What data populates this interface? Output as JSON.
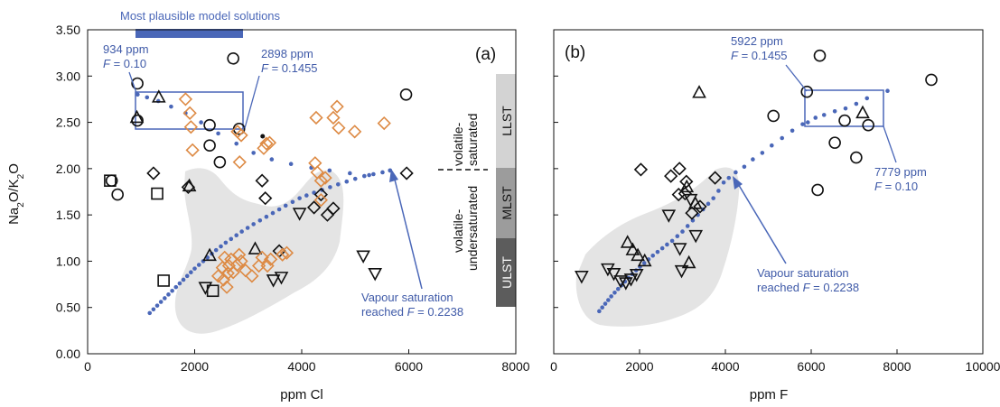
{
  "colors": {
    "model": "#4a67b8",
    "diamond_orange": "#dd8a44",
    "grey_field": "#e4e4e4",
    "band_LLST": "#d3d3d3",
    "band_MLST": "#9c9c9c",
    "band_ULST": "#5c5c5c",
    "model_bar": "#4a67b8"
  },
  "chart_data": [
    {
      "panel": "(a)",
      "type": "scatter",
      "xlabel": "ppm Cl",
      "ylabel": "Na2O/K2O",
      "xlim": [
        0,
        8000
      ],
      "ylim": [
        0,
        3.5
      ],
      "xticks": [
        "0",
        "2000",
        "4000",
        "6000",
        "8000"
      ],
      "yticks": [
        "0.00",
        "0.50",
        "1.00",
        "1.50",
        "2.00",
        "2.50",
        "3.00",
        "3.50"
      ],
      "model_bar_label": "Most plausible model solutions",
      "model_bar_range": [
        934,
        2898
      ],
      "box_range": {
        "x": [
          900,
          2950
        ],
        "y": [
          2.43,
          2.82
        ]
      },
      "annotations": {
        "left_box": {
          "line1": "934 ppm",
          "f_symbol": "F",
          "f_value": " = 0.10"
        },
        "right_box": {
          "line1": "2898 ppm",
          "f_symbol": "F",
          "f_value": " = 0.1455"
        },
        "vapour": {
          "line1": "Vapour saturation",
          "line2_prefix": "reached ",
          "f_symbol": "F",
          "f_value": " = 0.2238"
        }
      },
      "side_labels": {
        "volatile_saturated": [
          "volatile-",
          "saturated"
        ],
        "volatile_undersaturated": [
          "volatile-",
          "undersaturated"
        ]
      },
      "bands": [
        {
          "name": "LLST",
          "range": [
            2.0,
            3.05
          ]
        },
        {
          "name": "MLST",
          "range": [
            1.27,
            2.0
          ]
        },
        {
          "name": "ULST",
          "range": [
            0.5,
            1.27
          ]
        }
      ],
      "model_curve_dots": [
        [
          1160,
          0.44
        ],
        [
          1230,
          0.48
        ],
        [
          1300,
          0.52
        ],
        [
          1370,
          0.56
        ],
        [
          1440,
          0.6
        ],
        [
          1510,
          0.64
        ],
        [
          1580,
          0.68
        ],
        [
          1650,
          0.72
        ],
        [
          1720,
          0.76
        ],
        [
          1790,
          0.8
        ],
        [
          1860,
          0.84
        ],
        [
          1930,
          0.88
        ],
        [
          2000,
          0.92
        ],
        [
          2080,
          0.96
        ],
        [
          2160,
          1.0
        ],
        [
          2240,
          1.04
        ],
        [
          2320,
          1.08
        ],
        [
          2400,
          1.12
        ],
        [
          2490,
          1.16
        ],
        [
          2580,
          1.2
        ],
        [
          2680,
          1.24
        ],
        [
          2780,
          1.28
        ],
        [
          2880,
          1.32
        ],
        [
          2990,
          1.36
        ],
        [
          3100,
          1.4
        ],
        [
          3220,
          1.44
        ],
        [
          3340,
          1.48
        ],
        [
          3460,
          1.52
        ],
        [
          3580,
          1.56
        ],
        [
          3700,
          1.6
        ],
        [
          3830,
          1.64
        ],
        [
          3960,
          1.68
        ],
        [
          4090,
          1.71
        ],
        [
          4230,
          1.74
        ],
        [
          4380,
          1.77
        ],
        [
          4530,
          1.8
        ],
        [
          4680,
          1.83
        ],
        [
          4840,
          1.86
        ],
        [
          5000,
          1.89
        ],
        [
          5170,
          1.92
        ],
        [
          5340,
          1.94
        ],
        [
          5510,
          1.96
        ],
        [
          5650,
          1.98
        ],
        [
          934,
          2.8
        ],
        [
          1110,
          2.77
        ],
        [
          1320,
          2.73
        ],
        [
          1560,
          2.67
        ],
        [
          1830,
          2.6
        ],
        [
          2120,
          2.5
        ],
        [
          2440,
          2.38
        ],
        [
          2780,
          2.27
        ],
        [
          3100,
          2.17
        ],
        [
          3440,
          2.1
        ],
        [
          3800,
          2.05
        ],
        [
          4180,
          2.01
        ],
        [
          4520,
          1.98
        ],
        [
          4900,
          1.95
        ],
        [
          5260,
          1.93
        ],
        [
          5650,
          1.98
        ]
      ],
      "circles": [
        [
          930,
          2.92
        ],
        [
          930,
          2.52
        ],
        [
          2280,
          2.47
        ],
        [
          2280,
          2.25
        ],
        [
          2470,
          2.07
        ],
        [
          2720,
          3.19
        ],
        [
          2830,
          2.43
        ],
        [
          5950,
          2.8
        ],
        [
          450,
          1.87
        ],
        [
          560,
          1.72
        ]
      ],
      "squares": [
        [
          420,
          1.87
        ],
        [
          1300,
          1.73
        ],
        [
          1420,
          0.79
        ],
        [
          2340,
          0.68
        ]
      ],
      "triangles_up": [
        [
          920,
          2.55
        ],
        [
          1330,
          2.77
        ],
        [
          1900,
          1.81
        ],
        [
          2280,
          1.06
        ],
        [
          3130,
          1.13
        ]
      ],
      "triangles_down": [
        [
          2200,
          0.72
        ],
        [
          3470,
          0.8
        ],
        [
          3620,
          0.83
        ],
        [
          3960,
          1.52
        ],
        [
          5150,
          1.06
        ],
        [
          5370,
          0.87
        ]
      ],
      "diamonds_black": [
        [
          1230,
          1.95
        ],
        [
          1880,
          1.8
        ],
        [
          3260,
          1.87
        ],
        [
          3320,
          1.68
        ],
        [
          3580,
          1.11
        ],
        [
          4360,
          1.72
        ],
        [
          4590,
          1.57
        ],
        [
          4480,
          1.5
        ],
        [
          4230,
          1.58
        ],
        [
          5960,
          1.95
        ]
      ],
      "diamonds_orange": [
        [
          1830,
          2.75
        ],
        [
          1910,
          2.6
        ],
        [
          1930,
          2.45
        ],
        [
          1960,
          2.2
        ],
        [
          2800,
          2.4
        ],
        [
          2870,
          2.36
        ],
        [
          2840,
          2.07
        ],
        [
          3290,
          2.22
        ],
        [
          3340,
          2.27
        ],
        [
          3400,
          2.28
        ],
        [
          4270,
          2.55
        ],
        [
          4590,
          2.55
        ],
        [
          4660,
          2.67
        ],
        [
          4690,
          2.44
        ],
        [
          4990,
          2.4
        ],
        [
          5540,
          2.49
        ],
        [
          4250,
          2.06
        ],
        [
          4290,
          1.96
        ],
        [
          4360,
          1.87
        ],
        [
          4440,
          1.9
        ],
        [
          4360,
          1.66
        ],
        [
          2560,
          1.04
        ],
        [
          2640,
          0.95
        ],
        [
          2680,
          1.02
        ],
        [
          2720,
          0.88
        ],
        [
          2790,
          0.96
        ],
        [
          2830,
          1.07
        ],
        [
          2870,
          1.0
        ],
        [
          2950,
          0.9
        ],
        [
          3070,
          0.84
        ],
        [
          3200,
          0.95
        ],
        [
          3260,
          1.04
        ],
        [
          3360,
          0.95
        ],
        [
          3420,
          1.02
        ],
        [
          3640,
          1.07
        ],
        [
          3720,
          1.09
        ],
        [
          2440,
          0.84
        ],
        [
          2540,
          0.8
        ],
        [
          2600,
          0.72
        ],
        [
          2520,
          0.93
        ],
        [
          2620,
          0.87
        ]
      ],
      "small_black_dot": [
        3270,
        2.35
      ]
    },
    {
      "panel": "(b)",
      "type": "scatter",
      "xlabel": "ppm F",
      "xlim": [
        0,
        10000
      ],
      "ylim": [
        0,
        3.5
      ],
      "xticks": [
        "0",
        "2000",
        "4000",
        "6000",
        "8000",
        "10000"
      ],
      "box_range": {
        "x": [
          5922,
          7779
        ],
        "y": [
          2.45,
          2.84
        ]
      },
      "annotations": {
        "left_box": {
          "line1": "5922 ppm",
          "f_symbol": "F",
          "f_value": " = 0.1455"
        },
        "right_box": {
          "line1": "7779 ppm",
          "f_symbol": "F",
          "f_value": " = 0.10"
        },
        "vapour": {
          "line1": "Vapour saturation",
          "line2_prefix": "reached ",
          "f_symbol": "F",
          "f_value": " = 0.2238"
        }
      },
      "model_curve_dots": [
        [
          1060,
          0.46
        ],
        [
          1130,
          0.5
        ],
        [
          1200,
          0.54
        ],
        [
          1270,
          0.58
        ],
        [
          1340,
          0.62
        ],
        [
          1420,
          0.66
        ],
        [
          1500,
          0.7
        ],
        [
          1580,
          0.74
        ],
        [
          1660,
          0.78
        ],
        [
          1740,
          0.82
        ],
        [
          1830,
          0.86
        ],
        [
          1920,
          0.9
        ],
        [
          2010,
          0.94
        ],
        [
          2110,
          0.98
        ],
        [
          2210,
          1.02
        ],
        [
          2310,
          1.06
        ],
        [
          2420,
          1.1
        ],
        [
          2530,
          1.14
        ],
        [
          2640,
          1.18
        ],
        [
          2760,
          1.22
        ],
        [
          2880,
          1.27
        ],
        [
          3000,
          1.32
        ],
        [
          3120,
          1.38
        ],
        [
          3240,
          1.44
        ],
        [
          3360,
          1.5
        ],
        [
          3480,
          1.56
        ],
        [
          3600,
          1.62
        ],
        [
          3720,
          1.68
        ],
        [
          3840,
          1.76
        ],
        [
          3960,
          1.85
        ],
        [
          4080,
          1.9
        ],
        [
          4240,
          1.96
        ],
        [
          4440,
          2.02
        ],
        [
          4640,
          2.1
        ],
        [
          4860,
          2.17
        ],
        [
          5080,
          2.25
        ],
        [
          5320,
          2.33
        ],
        [
          5560,
          2.41
        ],
        [
          5800,
          2.48
        ],
        [
          5922,
          2.5
        ],
        [
          6100,
          2.55
        ],
        [
          6300,
          2.58
        ],
        [
          6550,
          2.62
        ],
        [
          6800,
          2.65
        ],
        [
          7050,
          2.7
        ],
        [
          7300,
          2.76
        ],
        [
          7779,
          2.84
        ]
      ],
      "circles": [
        [
          5900,
          2.83
        ],
        [
          6200,
          3.22
        ],
        [
          6550,
          2.28
        ],
        [
          6780,
          2.52
        ],
        [
          7050,
          2.12
        ],
        [
          7330,
          2.47
        ],
        [
          6150,
          1.77
        ],
        [
          8800,
          2.96
        ],
        [
          5120,
          2.57
        ]
      ],
      "triangles_up": [
        [
          3390,
          2.82
        ],
        [
          7200,
          2.6
        ],
        [
          1720,
          1.2
        ],
        [
          1840,
          1.12
        ],
        [
          1960,
          1.06
        ],
        [
          2120,
          1.0
        ],
        [
          3100,
          1.8
        ],
        [
          3300,
          1.62
        ],
        [
          3150,
          0.98
        ]
      ],
      "triangles_down": [
        [
          650,
          0.84
        ],
        [
          1260,
          0.92
        ],
        [
          1400,
          0.87
        ],
        [
          1560,
          0.79
        ],
        [
          1680,
          0.77
        ],
        [
          1800,
          0.81
        ],
        [
          1930,
          0.86
        ],
        [
          2980,
          0.9
        ],
        [
          2940,
          1.14
        ],
        [
          3190,
          1.67
        ],
        [
          3310,
          1.28
        ],
        [
          2680,
          1.5
        ]
      ],
      "diamonds_black": [
        [
          2030,
          1.99
        ],
        [
          2730,
          1.92
        ],
        [
          2930,
          2.0
        ],
        [
          2910,
          1.72
        ],
        [
          3090,
          1.86
        ],
        [
          3220,
          1.52
        ],
        [
          3410,
          1.59
        ],
        [
          3760,
          1.9
        ],
        [
          3060,
          1.73
        ]
      ]
    }
  ]
}
